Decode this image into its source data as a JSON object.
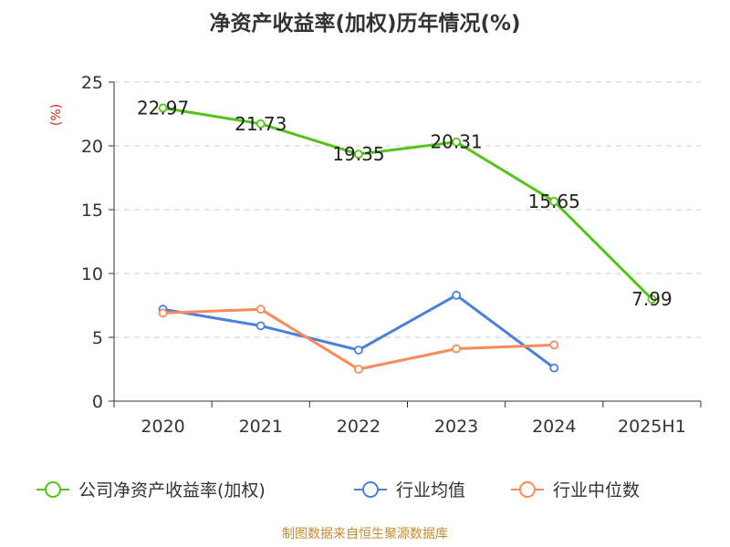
{
  "chart_data": {
    "type": "line",
    "title": "净资产收益率(加权)历年情况(%)",
    "ylabel": "(%)",
    "ylim": [
      0,
      25
    ],
    "yticks": [
      0,
      5,
      10,
      15,
      20,
      25
    ],
    "categories": [
      "2020",
      "2021",
      "2022",
      "2023",
      "2024",
      "2025H1"
    ],
    "grid": true,
    "legend_position": "bottom",
    "series": [
      {
        "name": "公司净资产收益率(加权)",
        "values": [
          22.97,
          21.73,
          19.35,
          20.31,
          15.65,
          7.99
        ],
        "color": "#52c41a",
        "show_labels": true
      },
      {
        "name": "行业均值",
        "values": [
          7.2,
          5.9,
          4.0,
          8.3,
          2.6,
          null
        ],
        "color": "#4a7fdc",
        "show_labels": false
      },
      {
        "name": "行业中位数",
        "values": [
          6.9,
          7.2,
          2.5,
          4.1,
          4.4,
          null
        ],
        "color": "#f78c5a",
        "show_labels": false
      }
    ],
    "source": "制图数据来自恒生聚源数据库"
  }
}
